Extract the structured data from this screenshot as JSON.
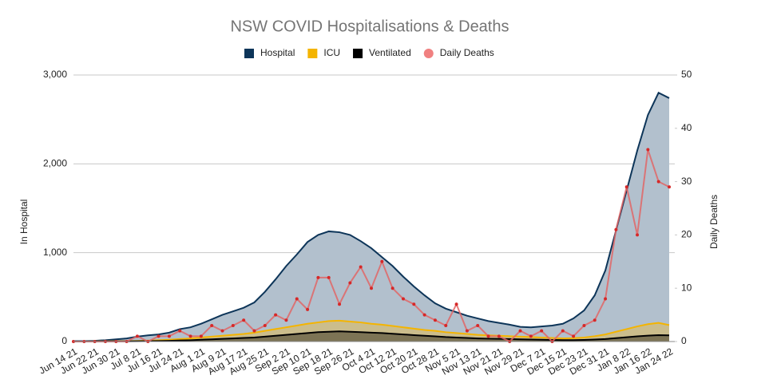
{
  "chart_data": {
    "type": "area",
    "title": "NSW COVID Hospitalisations & Deaths",
    "y_label": "In Hospital",
    "y2_label": "Daily Deaths",
    "categories": [
      "Jun 14 21",
      null,
      "Jun 22 21",
      null,
      "Jun 30 21",
      null,
      "Jul 8 21",
      null,
      "Jul 16 21",
      null,
      "Jul 24 21",
      null,
      "Aug 1 21",
      null,
      "Aug 9 21",
      null,
      "Aug 17 21",
      null,
      "Aug 25 21",
      null,
      "Sep 2 21",
      null,
      "Sep 10 21",
      null,
      "Sep 18 21",
      null,
      "Sep 26 21",
      null,
      "Oct 4 21",
      null,
      "Oct 12 21",
      null,
      "Oct 20 21",
      null,
      "Oct 28 21",
      null,
      "Nov 5 21",
      null,
      "Nov 13 21",
      null,
      "Nov 21 21",
      null,
      "Nov 29 21",
      null,
      "Dec 7 21",
      null,
      "Dec 15 21",
      null,
      "Dec 23 21",
      null,
      "Dec 31 21",
      null,
      "Jan 8 22",
      null,
      "Jan 16 22",
      null,
      "Jan 24 22"
    ],
    "series": [
      {
        "name": "Hospital",
        "type": "area",
        "color": "#0d3559",
        "fill": "#b2c0cd",
        "values": [
          5,
          5,
          8,
          15,
          25,
          35,
          55,
          70,
          80,
          100,
          140,
          160,
          200,
          250,
          300,
          340,
          380,
          440,
          560,
          700,
          850,
          980,
          1120,
          1200,
          1240,
          1230,
          1200,
          1130,
          1050,
          950,
          850,
          730,
          620,
          520,
          430,
          370,
          330,
          290,
          260,
          230,
          210,
          190,
          165,
          160,
          170,
          180,
          200,
          260,
          350,
          520,
          800,
          1250,
          1700,
          2150,
          2550,
          2800,
          2740
        ]
      },
      {
        "name": "ICU",
        "type": "area",
        "color": "#f4b400",
        "fill": "#cbbd8c",
        "values": [
          0,
          0,
          1,
          2,
          4,
          5,
          7,
          10,
          15,
          20,
          28,
          35,
          45,
          55,
          65,
          75,
          85,
          100,
          120,
          140,
          160,
          180,
          200,
          215,
          230,
          235,
          225,
          215,
          200,
          190,
          175,
          160,
          145,
          130,
          120,
          105,
          95,
          85,
          75,
          70,
          65,
          60,
          55,
          50,
          45,
          40,
          35,
          38,
          45,
          60,
          80,
          110,
          140,
          170,
          195,
          210,
          185
        ]
      },
      {
        "name": "Ventilated",
        "type": "area",
        "color": "#000000",
        "fill": "#7d7455",
        "values": [
          0,
          0,
          0,
          1,
          2,
          2,
          3,
          4,
          6,
          8,
          12,
          15,
          20,
          25,
          30,
          35,
          40,
          45,
          55,
          65,
          75,
          85,
          95,
          105,
          110,
          115,
          110,
          105,
          100,
          95,
          88,
          80,
          72,
          65,
          58,
          50,
          45,
          40,
          35,
          32,
          30,
          28,
          25,
          22,
          20,
          18,
          16,
          16,
          18,
          22,
          28,
          38,
          48,
          58,
          66,
          72,
          70
        ]
      },
      {
        "name": "Daily Deaths",
        "type": "line",
        "axis": "y2",
        "color": "#e06666",
        "values": [
          0,
          0,
          0,
          0,
          0,
          0,
          1,
          0,
          1,
          1,
          2,
          1,
          1,
          3,
          2,
          3,
          4,
          2,
          3,
          5,
          4,
          8,
          6,
          12,
          12,
          7,
          11,
          14,
          10,
          15,
          10,
          8,
          7,
          5,
          4,
          3,
          7,
          2,
          3,
          1,
          1,
          0,
          2,
          1,
          2,
          0,
          2,
          1,
          3,
          4,
          8,
          21,
          29,
          20,
          36,
          30,
          29
        ]
      }
    ],
    "ylim": [
      0,
      3000
    ],
    "yticks": [
      0,
      {
        "value": 1000,
        "label": "1,000"
      },
      {
        "value": 2000,
        "label": "2,000"
      },
      {
        "value": 3000,
        "label": "3,000"
      }
    ],
    "y2lim": [
      0,
      50
    ],
    "y2ticks": [
      0,
      10,
      20,
      30,
      40,
      50
    ],
    "grid": true,
    "legend": "top"
  }
}
